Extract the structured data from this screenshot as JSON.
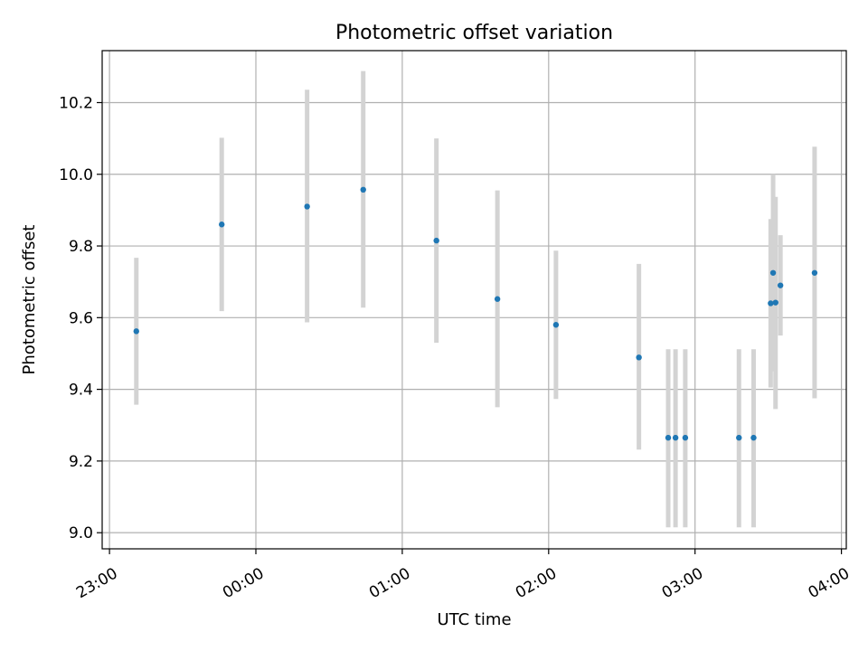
{
  "chart_data": {
    "type": "scatter",
    "title": "Photometric offset variation",
    "xlabel": "UTC time",
    "ylabel": "Photometric offset",
    "x_ticks": [
      "23:00",
      "00:00",
      "01:00",
      "02:00",
      "03:00",
      "04:00"
    ],
    "y_ticks": [
      "9.0",
      "9.2",
      "9.4",
      "9.6",
      "9.8",
      "10.0",
      "10.2"
    ],
    "y_tick_values": [
      9.0,
      9.2,
      9.4,
      9.6,
      9.8,
      10.0,
      10.2
    ],
    "xlim": [
      "22:57",
      "04:02"
    ],
    "ylim": [
      8.955,
      10.345
    ],
    "grid": true,
    "point_color": "#1f77b4",
    "errorbar_color": "#d3d3d3",
    "points": [
      {
        "time": "23:11",
        "y": 9.562,
        "ylow": 9.357,
        "yhigh": 9.767
      },
      {
        "time": "23:46",
        "y": 9.86,
        "ylow": 9.618,
        "yhigh": 10.102
      },
      {
        "time": "00:21",
        "y": 9.91,
        "ylow": 9.587,
        "yhigh": 10.236
      },
      {
        "time": "00:44",
        "y": 9.957,
        "ylow": 9.628,
        "yhigh": 10.288
      },
      {
        "time": "01:14",
        "y": 9.815,
        "ylow": 9.53,
        "yhigh": 10.1
      },
      {
        "time": "01:39",
        "y": 9.652,
        "ylow": 9.35,
        "yhigh": 9.955
      },
      {
        "time": "02:03",
        "y": 9.58,
        "ylow": 9.373,
        "yhigh": 9.787
      },
      {
        "time": "02:37",
        "y": 9.489,
        "ylow": 9.232,
        "yhigh": 9.75
      },
      {
        "time": "02:49",
        "y": 9.265,
        "ylow": 9.015,
        "yhigh": 9.512
      },
      {
        "time": "02:52",
        "y": 9.265,
        "ylow": 9.015,
        "yhigh": 9.512
      },
      {
        "time": "02:56",
        "y": 9.265,
        "ylow": 9.015,
        "yhigh": 9.512
      },
      {
        "time": "03:18",
        "y": 9.265,
        "ylow": 9.015,
        "yhigh": 9.512
      },
      {
        "time": "03:24",
        "y": 9.265,
        "ylow": 9.015,
        "yhigh": 9.512
      },
      {
        "time": "03:31",
        "y": 9.64,
        "ylow": 9.405,
        "yhigh": 9.875
      },
      {
        "time": "03:32",
        "y": 9.725,
        "ylow": 9.45,
        "yhigh": 10.0
      },
      {
        "time": "03:33",
        "y": 9.642,
        "ylow": 9.345,
        "yhigh": 9.937
      },
      {
        "time": "03:35",
        "y": 9.69,
        "ylow": 9.55,
        "yhigh": 9.83
      },
      {
        "time": "03:49",
        "y": 9.725,
        "ylow": 9.375,
        "yhigh": 10.077
      }
    ]
  }
}
